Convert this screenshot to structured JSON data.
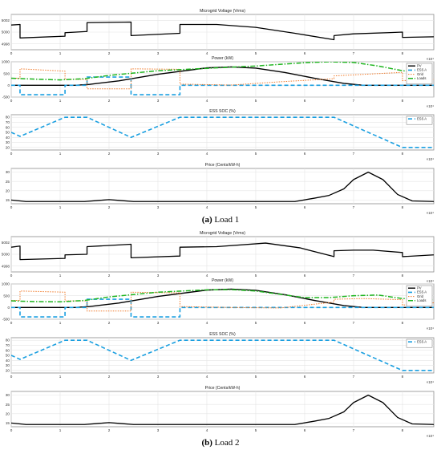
{
  "colors": {
    "pv": "#000000",
    "ess": "#1a9fe0",
    "grid": "#f07a2a",
    "loads": "#1fb51f",
    "grid_lines": "#e4e4e4",
    "axis": "#8c8c8c"
  },
  "chart_data": [
    {
      "type": "line",
      "panel": "voltage",
      "figure": "a",
      "title": "Microgrid Voltage (Vrms)",
      "ylim": [
        4997,
        5003
      ],
      "yticks": [
        4998,
        5000,
        5002
      ],
      "xlim": [
        0,
        8.64
      ],
      "xticks": [
        0,
        1,
        2,
        3,
        4,
        5,
        6,
        7,
        8
      ],
      "x_exponent": "×10⁴",
      "series": [
        {
          "x": [
            0,
            0.18,
            0.18,
            1.1,
            1.1,
            1.55,
            1.55,
            2.45,
            2.45,
            3.45,
            3.45,
            4.2,
            5.0,
            5.8,
            6.6,
            6.6,
            7.0,
            7.7,
            8.0,
            8.0,
            8.64
          ],
          "y": [
            5001.2,
            5001.3,
            4999.0,
            4999.3,
            4999.9,
            5000.1,
            5001.6,
            5001.7,
            4999.4,
            4999.8,
            5001.3,
            5001.3,
            5000.8,
            4999.8,
            4998.7,
            4999.4,
            4999.7,
            4999.9,
            5000.0,
            4999.1,
            4999.2
          ]
        }
      ]
    },
    {
      "type": "line",
      "panel": "power",
      "figure": "a",
      "title": "Power",
      "ylabel": "(kW)",
      "ylim": [
        -500,
        1000
      ],
      "yticks": [
        -500,
        0,
        500,
        1000
      ],
      "xlim": [
        0,
        8.64
      ],
      "xticks": [
        0,
        1,
        2,
        3,
        4,
        5,
        6,
        7,
        8
      ],
      "x_exponent": "×10⁴",
      "legend_position": "top-right",
      "series": [
        {
          "name": "PV",
          "x": [
            0,
            1.3,
            1.6,
            2.2,
            3.0,
            4.0,
            4.5,
            5.0,
            5.6,
            6.2,
            6.8,
            7.2,
            8.64
          ],
          "y": [
            0,
            0,
            40,
            190,
            470,
            740,
            780,
            730,
            540,
            300,
            80,
            0,
            0
          ]
        },
        {
          "name": "ESS A",
          "x": [
            0,
            0.18,
            0.18,
            1.1,
            1.1,
            1.55,
            1.55,
            2.45,
            2.45,
            3.45,
            3.45,
            6.6,
            6.6,
            8.0,
            8.0,
            8.64
          ],
          "y": [
            0,
            0,
            -400,
            -400,
            0,
            0,
            350,
            350,
            -400,
            -400,
            0,
            0,
            0,
            0,
            0,
            0
          ]
        },
        {
          "name": "Grid",
          "x": [
            0,
            0.18,
            0.18,
            1.1,
            1.1,
            1.55,
            1.55,
            2.45,
            2.45,
            3.45,
            3.45,
            4.5,
            5.5,
            6.6,
            6.6,
            8.0,
            8.0,
            8.64
          ],
          "y": [
            300,
            300,
            700,
            600,
            250,
            250,
            -150,
            -150,
            700,
            680,
            50,
            10,
            150,
            280,
            400,
            550,
            200,
            250
          ]
        },
        {
          "name": "Loads",
          "x": [
            0,
            0.5,
            1.0,
            1.5,
            2.0,
            3.0,
            4.0,
            5.0,
            6.0,
            6.5,
            7.0,
            7.5,
            8.0,
            8.64
          ],
          "y": [
            300,
            260,
            230,
            280,
            420,
            620,
            720,
            820,
            960,
            1000,
            970,
            820,
            620,
            480
          ]
        }
      ]
    },
    {
      "type": "line",
      "panel": "soc",
      "figure": "a",
      "title": "ESS SOC (%)",
      "ylim": [
        15,
        85
      ],
      "yticks": [
        20,
        30,
        40,
        50,
        60,
        70,
        80
      ],
      "xlim": [
        0,
        8.64
      ],
      "xticks": [
        0,
        1,
        2,
        3,
        4,
        5,
        6,
        7,
        8
      ],
      "x_exponent": "×10⁴",
      "legend_position": "top-right",
      "series": [
        {
          "name": "ESS A",
          "x": [
            0,
            0.18,
            1.1,
            1.55,
            2.45,
            3.45,
            6.6,
            8.0,
            8.64
          ],
          "y": [
            50,
            42,
            80,
            80,
            40,
            80,
            80,
            20,
            20
          ]
        }
      ]
    },
    {
      "type": "line",
      "panel": "price",
      "figure": "a",
      "title": "Price (Cents/kW-h)",
      "ylim": [
        13,
        32
      ],
      "yticks": [
        15,
        20,
        25,
        30
      ],
      "xlim": [
        0,
        8.64
      ],
      "xticks": [
        0,
        1,
        2,
        3,
        4,
        5,
        6,
        7,
        8
      ],
      "x_exponent": "×10⁴",
      "series": [
        {
          "x": [
            0,
            0.3,
            1.5,
            1.8,
            2.0,
            2.2,
            2.5,
            5.8,
            6.2,
            6.5,
            6.8,
            7.0,
            7.3,
            7.6,
            7.9,
            8.2,
            8.64
          ],
          "y": [
            15,
            14.2,
            14.2,
            14.8,
            15.2,
            14.8,
            14.2,
            14.2,
            16,
            17.5,
            21,
            26,
            30,
            26,
            18,
            14.5,
            14.2
          ]
        }
      ]
    },
    {
      "type": "line",
      "panel": "voltage",
      "figure": "b",
      "title": "Microgrid Voltage (Vrms)",
      "ylim": [
        4997,
        5003
      ],
      "yticks": [
        4998,
        5000,
        5002
      ],
      "xlim": [
        0,
        8.64
      ],
      "xticks": [
        0,
        1,
        2,
        3,
        4,
        5,
        6,
        7,
        8
      ],
      "x_exponent": "×10⁴",
      "series": [
        {
          "x": [
            0,
            0.18,
            0.18,
            1.1,
            1.1,
            1.55,
            1.55,
            2.45,
            2.45,
            3.45,
            3.45,
            4.2,
            5.2,
            5.9,
            6.6,
            6.6,
            7.0,
            7.4,
            8.0,
            8.0,
            8.64
          ],
          "y": [
            5001.2,
            5001.4,
            4999.1,
            4999.3,
            4999.9,
            5000.0,
            5001.3,
            5001.7,
            4999.4,
            4999.7,
            5001.2,
            5001.3,
            5001.9,
            5001.1,
            4999.6,
            5000.6,
            5000.7,
            5000.7,
            5000.3,
            4999.6,
            4999.9
          ]
        }
      ]
    },
    {
      "type": "line",
      "panel": "power",
      "figure": "b",
      "title": "Power",
      "ylabel": "(kW)",
      "ylim": [
        -500,
        1000
      ],
      "yticks": [
        -500,
        0,
        500,
        1000
      ],
      "xlim": [
        0,
        8.64
      ],
      "xticks": [
        0,
        1,
        2,
        3,
        4,
        5,
        6,
        7,
        8
      ],
      "x_exponent": "×10⁴",
      "legend_position": "top-right",
      "series": [
        {
          "name": "PV",
          "x": [
            0,
            1.3,
            1.6,
            2.2,
            3.0,
            4.0,
            4.5,
            5.0,
            5.6,
            6.2,
            6.8,
            7.2,
            8.64
          ],
          "y": [
            0,
            0,
            40,
            190,
            470,
            740,
            780,
            730,
            540,
            300,
            80,
            0,
            0
          ]
        },
        {
          "name": "ESS A",
          "x": [
            0,
            0.18,
            0.18,
            1.1,
            1.1,
            1.55,
            1.55,
            2.45,
            2.45,
            3.45,
            3.45,
            6.6,
            6.6,
            8.0,
            8.0,
            8.64
          ],
          "y": [
            0,
            0,
            -400,
            -400,
            0,
            0,
            350,
            350,
            -400,
            -400,
            0,
            0,
            0,
            0,
            0,
            0
          ]
        },
        {
          "name": "Grid",
          "x": [
            0,
            0.18,
            0.18,
            1.1,
            1.1,
            1.55,
            1.55,
            2.45,
            2.45,
            3.45,
            3.45,
            4.5,
            5.5,
            6.6,
            6.6,
            7.2,
            8.0,
            8.0,
            8.64
          ],
          "y": [
            300,
            300,
            700,
            650,
            280,
            280,
            -150,
            -150,
            650,
            620,
            40,
            0,
            -20,
            230,
            350,
            380,
            330,
            100,
            200
          ]
        },
        {
          "name": "Loads",
          "x": [
            0,
            0.5,
            1.0,
            1.5,
            2.0,
            3.0,
            4.0,
            4.5,
            5.0,
            6.0,
            6.5,
            7.0,
            7.5,
            8.0,
            8.64
          ],
          "y": [
            280,
            250,
            240,
            300,
            450,
            650,
            750,
            760,
            700,
            420,
            420,
            500,
            530,
            380,
            330
          ]
        }
      ]
    },
    {
      "type": "line",
      "panel": "soc",
      "figure": "b",
      "title": "ESS SOC (%)",
      "ylim": [
        15,
        85
      ],
      "yticks": [
        20,
        30,
        40,
        50,
        60,
        70,
        80
      ],
      "xlim": [
        0,
        8.64
      ],
      "xticks": [
        0,
        1,
        2,
        3,
        4,
        5,
        6,
        7,
        8
      ],
      "x_exponent": "×10⁴",
      "legend_position": "top-right",
      "series": [
        {
          "name": "ESS A",
          "x": [
            0,
            0.18,
            1.1,
            1.55,
            2.45,
            3.45,
            6.6,
            8.0,
            8.64
          ],
          "y": [
            50,
            42,
            80,
            80,
            40,
            80,
            80,
            20,
            20
          ]
        }
      ]
    },
    {
      "type": "line",
      "panel": "price",
      "figure": "b",
      "title": "Price (Cents/kW-h)",
      "ylim": [
        13,
        32
      ],
      "yticks": [
        15,
        20,
        25,
        30
      ],
      "xlim": [
        0,
        8.64
      ],
      "xticks": [
        0,
        1,
        2,
        3,
        4,
        5,
        6,
        7,
        8
      ],
      "x_exponent": "×10⁴",
      "series": [
        {
          "x": [
            0,
            0.3,
            1.5,
            1.8,
            2.0,
            2.2,
            2.5,
            5.8,
            6.2,
            6.5,
            6.8,
            7.0,
            7.3,
            7.6,
            7.9,
            8.2,
            8.64
          ],
          "y": [
            15,
            14.2,
            14.2,
            14.8,
            15.2,
            14.8,
            14.2,
            14.2,
            16,
            17.5,
            21,
            26,
            30,
            26,
            18,
            14.5,
            14.2
          ]
        }
      ]
    }
  ],
  "captions": [
    {
      "tag": "(a)",
      "text": " Load 1"
    },
    {
      "tag": "(b)",
      "text": " Load 2"
    }
  ]
}
